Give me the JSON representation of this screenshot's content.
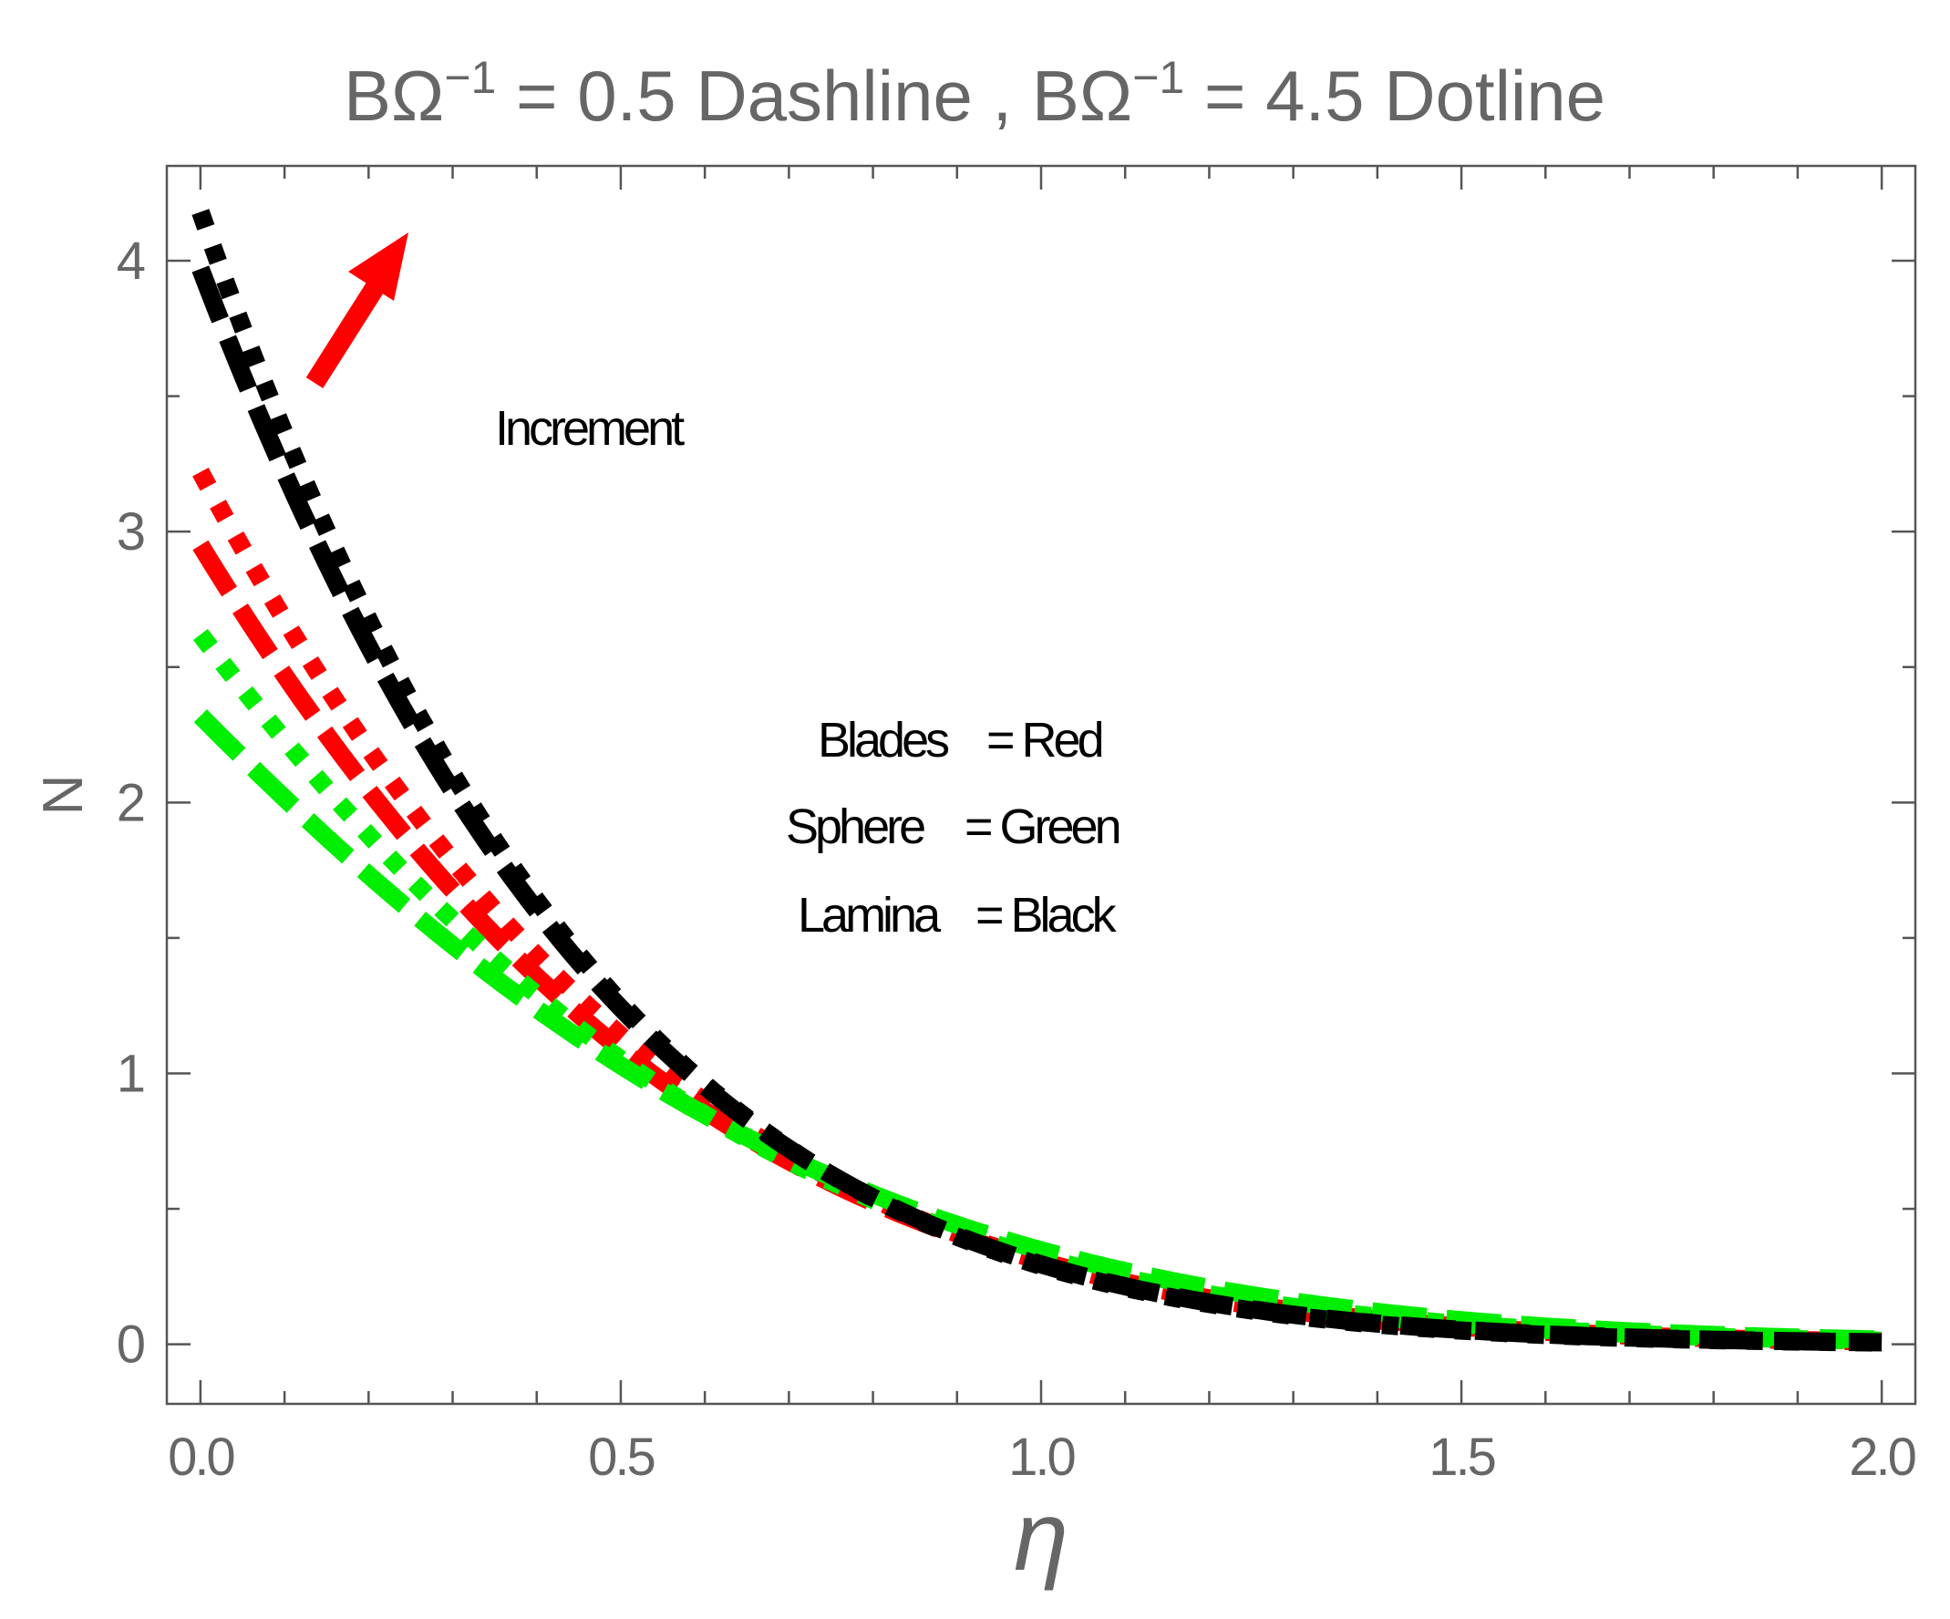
{
  "chart_data": {
    "type": "line",
    "title": {
      "part1_prefix": "BΩ",
      "part1_sup": "−1",
      "part1_suffix": " = 0.5 Dashline , ",
      "part2_prefix": "BΩ",
      "part2_sup": "−1",
      "part2_suffix": " = 4.5 Dotline"
    },
    "xlabel": "η",
    "ylabel": "N",
    "xlim": [
      -0.04,
      2.04
    ],
    "ylim": [
      -0.22,
      4.35
    ],
    "x_ticks": [
      0.0,
      0.5,
      1.0,
      1.5,
      2.0
    ],
    "x_tick_labels": [
      "0.0",
      "0.5",
      "1.0",
      "1.5",
      "2.0"
    ],
    "y_ticks": [
      0,
      1,
      2,
      3,
      4
    ],
    "y_tick_labels": [
      "0",
      "1",
      "2",
      "3",
      "4"
    ],
    "annotations": {
      "increment": "Increment",
      "legend_lines": [
        {
          "name": "Blades",
          "value": "= Red"
        },
        {
          "name": "Sphere",
          "value": "= Green"
        },
        {
          "name": "Lamina",
          "value": "= Black"
        }
      ]
    },
    "colors": {
      "red": "#ff0000",
      "green": "#00ee00",
      "black": "#000000",
      "frame": "#555555",
      "text": "#666666"
    },
    "series": [
      {
        "name": "Blades BΩ⁻¹ = 0.5",
        "color": "#ff0000",
        "style": "dash",
        "N0": 2.95,
        "k": 1.72,
        "c": 5.0
      },
      {
        "name": "Blades BΩ⁻¹ = 4.5",
        "color": "#ff0000",
        "style": "dot",
        "N0": 3.22,
        "k": 1.8,
        "c": 5.0
      },
      {
        "name": "Sphere BΩ⁻¹ = 0.5",
        "color": "#00ee00",
        "style": "dash",
        "N0": 2.32,
        "k": 1.35,
        "c": 5.0
      },
      {
        "name": "Sphere BΩ⁻¹ = 4.5",
        "color": "#00ee00",
        "style": "dot",
        "N0": 2.62,
        "k": 1.55,
        "c": 5.0
      },
      {
        "name": "Lamina BΩ⁻¹ = 0.5",
        "color": "#000000",
        "style": "dash",
        "N0": 3.97,
        "k": 2.05,
        "c": 5.0
      },
      {
        "name": "Lamina BΩ⁻¹ = 4.5",
        "color": "#000000",
        "style": "dot",
        "N0": 4.18,
        "k": 2.12,
        "c": 5.0
      }
    ]
  }
}
